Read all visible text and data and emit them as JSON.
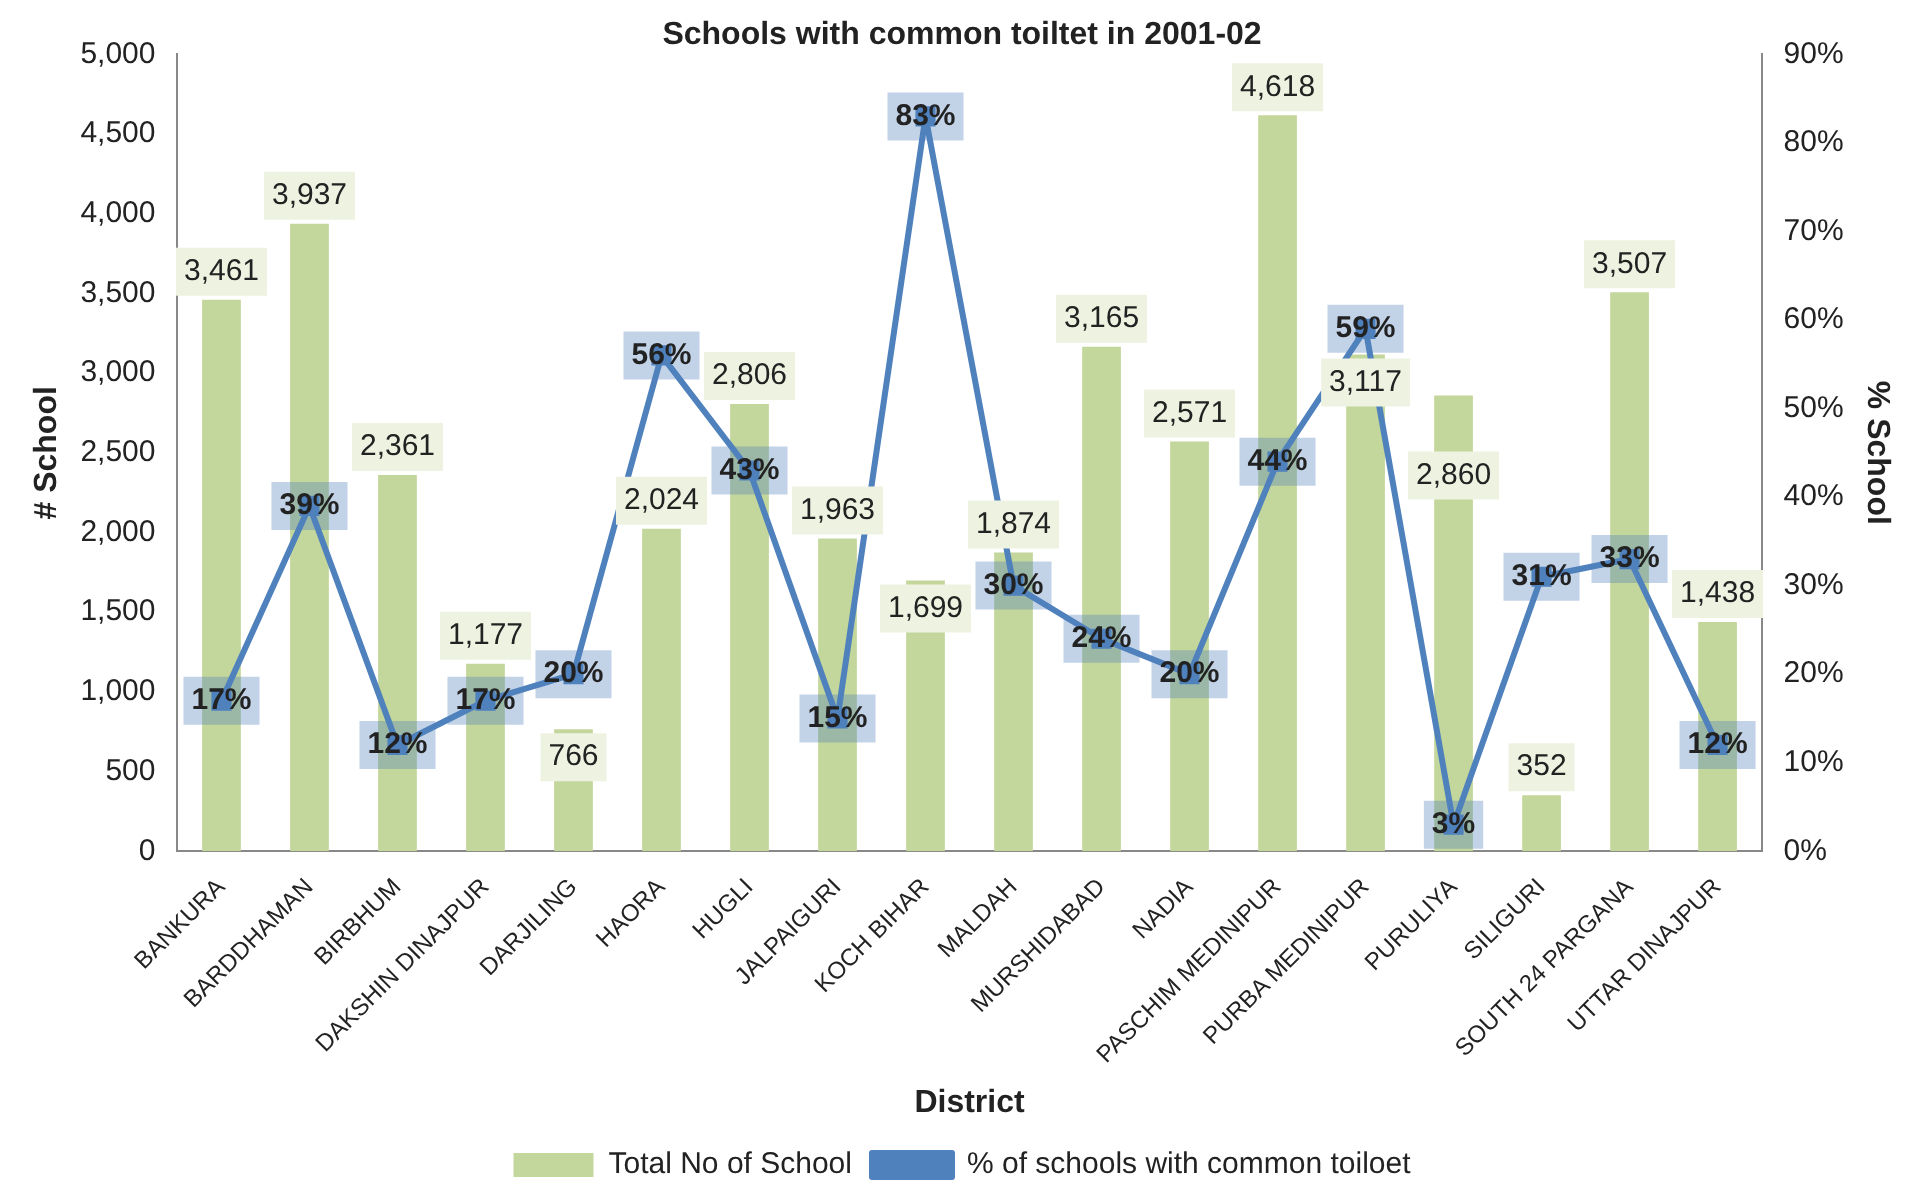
{
  "chart_data": {
    "type": "bar",
    "title": "Schools with common toiltet in 2001-02",
    "xlabel": "District",
    "ylabel": "# School",
    "y2label": "% School",
    "categories": [
      "BANKURA",
      "BARDDHAMAN",
      "BIRBHUM",
      "DAKSHIN DINAJPUR",
      "DARJILING",
      "HAORA",
      "HUGLI",
      "JALPAIGURI",
      "KOCH BIHAR",
      "MALDAH",
      "MURSHIDABAD",
      "NADIA",
      "PASCHIM MEDINIPUR",
      "PURBA MEDINIPUR",
      "PURULIYA",
      "SILIGURI",
      "SOUTH 24 PARGANA",
      "UTTAR DINAJPUR"
    ],
    "series": [
      {
        "name": "Total No of School",
        "color": "#c3d69b",
        "values": [
          3461,
          3937,
          2361,
          1177,
          766,
          2024,
          2806,
          1963,
          1699,
          1874,
          3165,
          2571,
          4618,
          3117,
          2860,
          352,
          3507,
          1438
        ],
        "value_labels": [
          "3,461",
          "3,937",
          "2,361",
          "1,177",
          "766",
          "2,024",
          "2,806",
          "1,963",
          "1,699",
          "1,874",
          "3,165",
          "2,571",
          "4,618",
          "3,117",
          "2,860",
          "352",
          "3,507",
          "1,438"
        ]
      },
      {
        "name": "% of schools with common toiloet",
        "type": "line",
        "axis": "y2",
        "color": "#4f81bd",
        "marker": "square",
        "values": [
          17,
          39,
          12,
          17,
          20,
          56,
          43,
          15,
          83,
          30,
          24,
          20,
          44,
          59,
          3,
          31,
          33,
          12
        ],
        "value_labels": [
          "17%",
          "39%",
          "12%",
          "17%",
          "20%",
          "56%",
          "43%",
          "15%",
          "83%",
          "30%",
          "24%",
          "20%",
          "44%",
          "59%",
          "3%",
          "31%",
          "33%",
          "12%"
        ]
      }
    ],
    "ylim": [
      0,
      5000
    ],
    "yticks": [
      0,
      500,
      {
        "value": 1000,
        "label": "1,000"
      },
      {
        "value": 1500,
        "label": "1,500"
      },
      {
        "value": 2000,
        "label": "2,000"
      },
      {
        "value": 2500,
        "label": "2,500"
      },
      {
        "value": 3000,
        "label": "3,000"
      },
      {
        "value": 3500,
        "label": "3,500"
      },
      {
        "value": 4000,
        "label": "4,000"
      },
      {
        "value": 4500,
        "label": "4,500"
      },
      {
        "value": 5000,
        "label": "5,000"
      }
    ],
    "y2lim": [
      0,
      90
    ],
    "y2ticks": [
      {
        "value": 0,
        "label": "0%"
      },
      {
        "value": 10,
        "label": "10%"
      },
      {
        "value": 20,
        "label": "20%"
      },
      {
        "value": 30,
        "label": "30%"
      },
      {
        "value": 40,
        "label": "40%"
      },
      {
        "value": 50,
        "label": "50%"
      },
      {
        "value": 60,
        "label": "60%"
      },
      {
        "value": 70,
        "label": "70%"
      },
      {
        "value": 80,
        "label": "80%"
      },
      {
        "value": 90,
        "label": "90%"
      }
    ],
    "grid": false,
    "legend": "bottom"
  }
}
